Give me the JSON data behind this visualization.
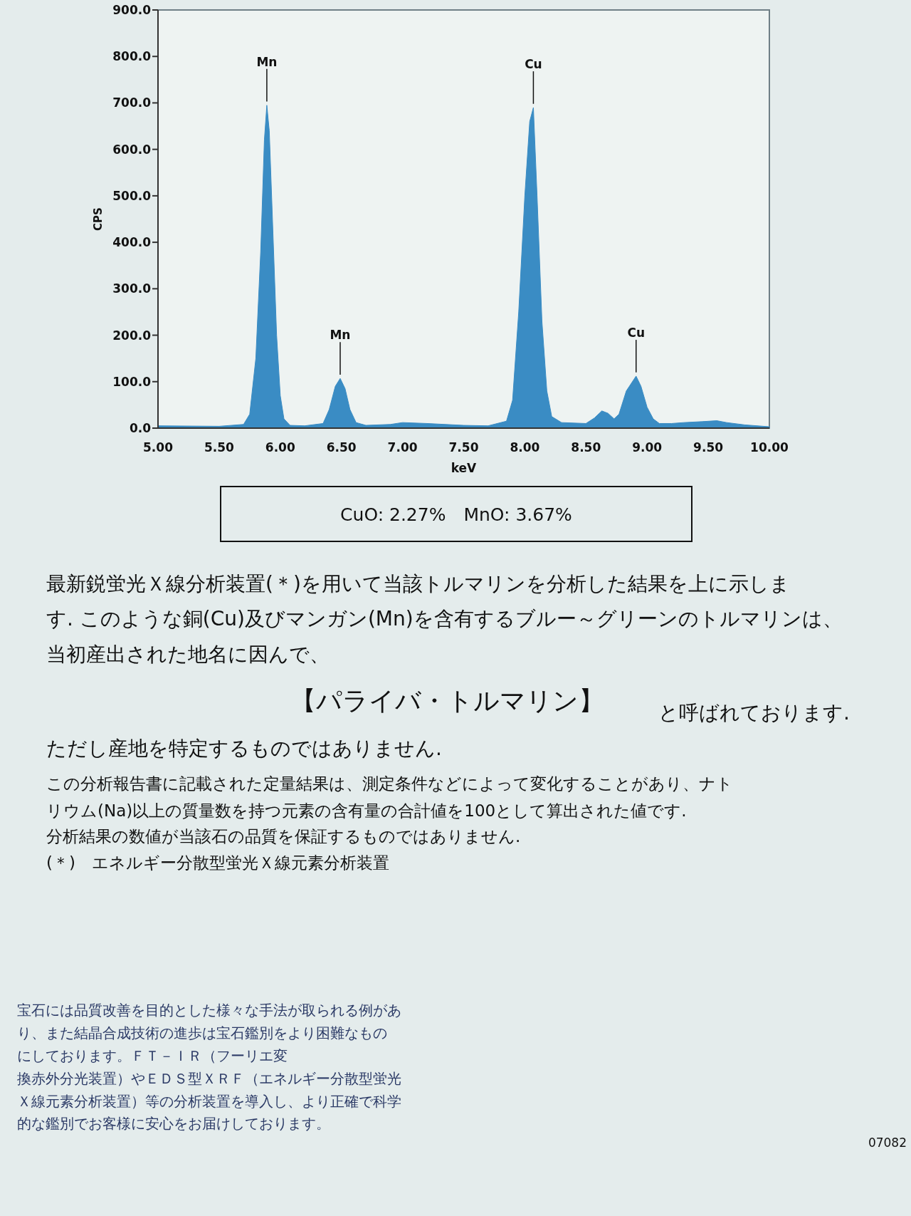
{
  "chart_data": {
    "type": "area",
    "color": "#3a8cc4",
    "xlabel": "keV",
    "ylabel": "CPS",
    "xlim": [
      5,
      10
    ],
    "ylim": [
      0,
      900
    ],
    "xticks": [
      {
        "value": 5,
        "label": "5.00"
      },
      {
        "value": 5.5,
        "label": "5.50"
      },
      {
        "value": 6,
        "label": "6.00"
      },
      {
        "value": 6.5,
        "label": "6.50"
      },
      {
        "value": 7,
        "label": "7.00"
      },
      {
        "value": 7.5,
        "label": "7.50"
      },
      {
        "value": 8,
        "label": "8.00"
      },
      {
        "value": 8.5,
        "label": "8.50"
      },
      {
        "value": 9,
        "label": "9.00"
      },
      {
        "value": 9.5,
        "label": "9.50"
      },
      {
        "value": 10,
        "label": "10.00"
      }
    ],
    "yticks": [
      {
        "value": 0,
        "label": "0.0"
      },
      {
        "value": 100,
        "label": "100.0"
      },
      {
        "value": 200,
        "label": "200.0"
      },
      {
        "value": 300,
        "label": "300.0"
      },
      {
        "value": 400,
        "label": "400.0"
      },
      {
        "value": 500,
        "label": "500.0"
      },
      {
        "value": 600,
        "label": "600.0"
      },
      {
        "value": 700,
        "label": "700.0"
      },
      {
        "value": 800,
        "label": "800.0"
      },
      {
        "value": 900,
        "label": "900.0"
      }
    ],
    "x": [
      5.0,
      5.5,
      5.7,
      5.75,
      5.8,
      5.84,
      5.87,
      5.89,
      5.91,
      5.94,
      5.97,
      6.0,
      6.03,
      6.08,
      6.2,
      6.35,
      6.4,
      6.45,
      6.49,
      6.53,
      6.57,
      6.62,
      6.7,
      6.9,
      7.0,
      7.2,
      7.5,
      7.7,
      7.85,
      7.9,
      7.95,
      8.0,
      8.04,
      8.07,
      8.1,
      8.14,
      8.18,
      8.22,
      8.3,
      8.5,
      8.57,
      8.63,
      8.68,
      8.73,
      8.77,
      8.83,
      8.91,
      8.95,
      9.0,
      9.05,
      9.1,
      9.2,
      9.3,
      9.45,
      9.57,
      9.65,
      9.8,
      10.0
    ],
    "values": [
      5,
      4,
      8,
      30,
      150,
      380,
      620,
      695,
      640,
      420,
      200,
      70,
      20,
      6,
      5,
      10,
      40,
      90,
      107,
      85,
      40,
      12,
      6,
      8,
      12,
      10,
      6,
      5,
      15,
      60,
      250,
      500,
      660,
      690,
      500,
      230,
      80,
      25,
      12,
      10,
      22,
      37,
      32,
      20,
      30,
      80,
      112,
      90,
      45,
      20,
      10,
      10,
      12,
      14,
      16,
      12,
      7,
      3
    ],
    "annotations": [
      {
        "text": "Mn",
        "x": 5.89,
        "y": 695
      },
      {
        "text": "Mn",
        "x": 6.49,
        "y": 107
      },
      {
        "text": "Cu",
        "x": 8.07,
        "y": 690
      },
      {
        "text": "Cu",
        "x": 8.91,
        "y": 112
      },
      "CuO: 2.27%　MnO: 3.67%",
      "最新鋭蛍光Ｘ線分析装置(＊)を用いて当該トルマリンを分析した結果を上に示しま",
      "す. このような銅(Cu)及びマンガン(Mn)を含有するブルー～グリーンのトルマリンは、",
      "当初産出された地名に因んで、",
      "【パライバ・トルマリン】",
      "と呼ばれております.",
      "ただし産地を特定するものではありません.",
      "この分析報告書に記載された定量結果は、測定条件などによって変化することがあり、ナト",
      "リウム(Na)以上の質量数を持つ元素の含有量の合計値を100として算出された値です.",
      "分析結果の数値が当該石の品質を保証するものではありません.",
      "(＊)　エネルギー分散型蛍光Ｘ線元素分析装置",
      "宝石には品質改善を目的とした様々な手法が取られる例があ",
      "り、また結晶合成技術の進歩は宝石鑑別をより困難なもの",
      "にしております。ＦＴ－ＩＲ（フーリエ変",
      "換赤外分光装置）やＥＤＳ型ＸＲＦ（エネルギー分散型蛍光",
      "Ｘ線元素分析装置）等の分析装置を導入し、より正確で科学",
      "的な鑑別でお客様に安心をお届けしております。",
      "07082"
    ]
  }
}
